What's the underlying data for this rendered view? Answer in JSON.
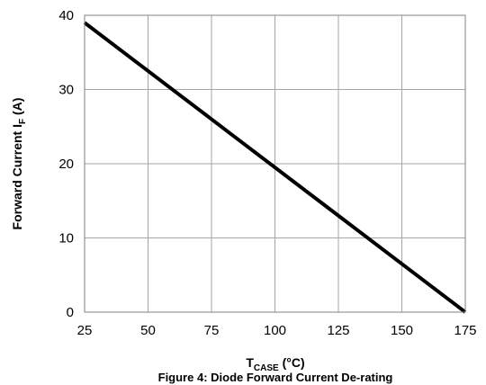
{
  "chart_data": {
    "type": "line",
    "xlabel": {
      "main": "T",
      "sub": "CASE",
      "rest": " (°C)"
    },
    "ylabel": {
      "main": "Forward Current I",
      "sub": "F",
      "rest": " (A)"
    },
    "caption": "Figure 4: Diode Forward Current De-rating",
    "xlim": [
      25,
      175
    ],
    "ylim": [
      0,
      40
    ],
    "xticks": [
      25,
      50,
      75,
      100,
      125,
      150,
      175
    ],
    "yticks": [
      0,
      10,
      20,
      30,
      40
    ],
    "grid": true,
    "series": [
      {
        "x": [
          25,
          175
        ],
        "y": [
          39,
          0
        ],
        "color": "#000000"
      }
    ]
  }
}
